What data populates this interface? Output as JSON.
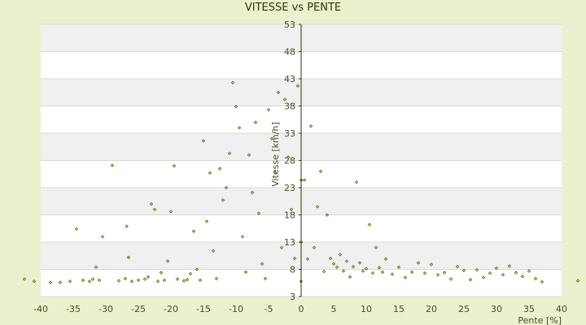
{
  "chart_data": {
    "type": "scatter",
    "title": "VITESSE vs PENTE",
    "xlabel": "Pente [%]",
    "ylabel": "Vitesse [km/h]",
    "xlim": [
      -40,
      40
    ],
    "ylim": [
      3,
      53
    ],
    "x_ticks": [
      -40,
      -35,
      -30,
      -25,
      -20,
      -15,
      -10,
      -5,
      0,
      5,
      10,
      15,
      20,
      25,
      30,
      35,
      40
    ],
    "y_ticks": [
      3,
      8,
      13,
      18,
      23,
      28,
      33,
      38,
      43,
      48,
      53
    ],
    "grid": "horizontal",
    "legend": "none",
    "colors": {
      "background": "#ebf1ce",
      "plot_area": "#ffffff",
      "band": "#f0f0f0",
      "axis": "#333300",
      "marker": "#5a6e00"
    },
    "series": [
      {
        "values": [
          [
            -42.5,
            6.2
          ],
          [
            -41.0,
            5.8
          ],
          [
            -38.5,
            5.6
          ],
          [
            -37.0,
            5.6
          ],
          [
            -35.5,
            5.8
          ],
          [
            -34.5,
            15.4
          ],
          [
            -33.5,
            6.0
          ],
          [
            -32.5,
            5.8
          ],
          [
            -32.0,
            6.2
          ],
          [
            -31.5,
            8.4
          ],
          [
            -31.0,
            6.0
          ],
          [
            -30.5,
            14.0
          ],
          [
            -29.0,
            27.1
          ],
          [
            -28.0,
            5.9
          ],
          [
            -27.0,
            6.3
          ],
          [
            -26.8,
            15.9
          ],
          [
            -26.5,
            10.2
          ],
          [
            -26.0,
            5.8
          ],
          [
            -25.0,
            6.0
          ],
          [
            -24.0,
            6.2
          ],
          [
            -23.5,
            6.6
          ],
          [
            -23.0,
            20.0
          ],
          [
            -22.5,
            19.0
          ],
          [
            -22.0,
            5.8
          ],
          [
            -21.5,
            7.4
          ],
          [
            -21.0,
            6.0
          ],
          [
            -20.5,
            9.5
          ],
          [
            -20.0,
            18.6
          ],
          [
            -19.5,
            27.0
          ],
          [
            -19.0,
            6.2
          ],
          [
            -18.0,
            5.9
          ],
          [
            -17.5,
            6.1
          ],
          [
            -17.0,
            7.2
          ],
          [
            -16.5,
            15.0
          ],
          [
            -16.0,
            8.0
          ],
          [
            -15.5,
            6.0
          ],
          [
            -15.0,
            31.6
          ],
          [
            -14.5,
            16.8
          ],
          [
            -14.0,
            25.7
          ],
          [
            -13.5,
            11.4
          ],
          [
            -13.0,
            6.3
          ],
          [
            -12.5,
            26.5
          ],
          [
            -12.0,
            20.7
          ],
          [
            -11.5,
            23.0
          ],
          [
            -11.0,
            29.3
          ],
          [
            -10.5,
            42.3
          ],
          [
            -10.0,
            37.9
          ],
          [
            -9.5,
            34.0
          ],
          [
            -9.0,
            14.0
          ],
          [
            -8.5,
            7.5
          ],
          [
            -8.0,
            29.0
          ],
          [
            -7.5,
            22.1
          ],
          [
            -7.0,
            35.0
          ],
          [
            -6.5,
            18.3
          ],
          [
            -6.0,
            9.0
          ],
          [
            -5.5,
            6.3
          ],
          [
            -5.0,
            37.3
          ],
          [
            -4.5,
            32.0
          ],
          [
            -4.0,
            25.8
          ],
          [
            -3.5,
            40.5
          ],
          [
            -3.0,
            12.0
          ],
          [
            -2.5,
            39.2
          ],
          [
            -2.0,
            28.6
          ],
          [
            -1.5,
            19.0
          ],
          [
            -1.0,
            10.0
          ],
          [
            -0.5,
            41.7
          ],
          [
            0.0,
            5.8
          ],
          [
            0.0,
            13.0
          ],
          [
            0.0,
            24.4
          ],
          [
            0.5,
            24.4
          ],
          [
            1.0,
            9.9
          ],
          [
            1.5,
            34.3
          ],
          [
            2.0,
            12.0
          ],
          [
            2.5,
            19.5
          ],
          [
            3.0,
            26.0
          ],
          [
            3.5,
            7.6
          ],
          [
            4.0,
            18.0
          ],
          [
            4.5,
            10.0
          ],
          [
            5.0,
            9.0
          ],
          [
            5.5,
            8.4
          ],
          [
            6.0,
            10.7
          ],
          [
            6.5,
            7.7
          ],
          [
            7.0,
            9.5
          ],
          [
            7.5,
            6.6
          ],
          [
            8.0,
            8.5
          ],
          [
            8.5,
            24.0
          ],
          [
            9.0,
            9.2
          ],
          [
            9.5,
            7.7
          ],
          [
            10.0,
            8.1
          ],
          [
            10.5,
            16.2
          ],
          [
            11.0,
            7.3
          ],
          [
            11.5,
            12.0
          ],
          [
            12.0,
            8.3
          ],
          [
            12.5,
            7.5
          ],
          [
            13.0,
            9.9
          ],
          [
            14.0,
            7.1
          ],
          [
            15.0,
            8.4
          ],
          [
            16.0,
            6.5
          ],
          [
            17.0,
            7.5
          ],
          [
            18.0,
            9.2
          ],
          [
            19.0,
            7.3
          ],
          [
            20.0,
            8.9
          ],
          [
            21.0,
            7.0
          ],
          [
            22.0,
            7.4
          ],
          [
            23.0,
            6.2
          ],
          [
            24.0,
            8.5
          ],
          [
            25.0,
            7.8
          ],
          [
            26.0,
            6.1
          ],
          [
            27.0,
            7.9
          ],
          [
            28.0,
            6.5
          ],
          [
            29.0,
            7.3
          ],
          [
            30.0,
            8.2
          ],
          [
            31.0,
            7.0
          ],
          [
            32.0,
            8.6
          ],
          [
            33.0,
            7.4
          ],
          [
            34.0,
            6.7
          ],
          [
            35.0,
            7.7
          ],
          [
            36.0,
            6.3
          ],
          [
            37.0,
            5.7
          ],
          [
            42.5,
            5.9
          ]
        ]
      }
    ]
  }
}
